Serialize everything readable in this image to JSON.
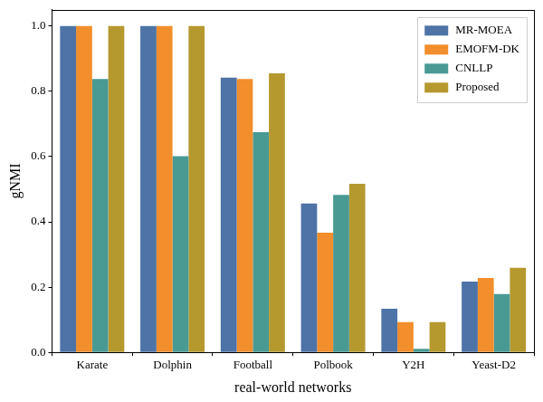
{
  "chart_data": {
    "type": "bar",
    "x_label": "real-world networks",
    "y_label": "gNMI",
    "categories": [
      "Karate",
      "Dolphin",
      "Football",
      "Polbook",
      "Y2H",
      "Yeast-D2"
    ],
    "series": [
      {
        "name": "MR-MOEA",
        "color": "#4e73a6",
        "values": [
          1.0,
          1.0,
          0.842,
          0.456,
          0.134,
          0.217
        ]
      },
      {
        "name": "EMOFM-DK",
        "color": "#f28e2b",
        "values": [
          1.0,
          1.0,
          0.838,
          0.367,
          0.093,
          0.228
        ]
      },
      {
        "name": "CNLLP",
        "color": "#4a9a94",
        "values": [
          0.838,
          0.601,
          0.675,
          0.483,
          0.011,
          0.179
        ]
      },
      {
        "name": "Proposed",
        "color": "#b5992f",
        "values": [
          1.0,
          1.0,
          0.855,
          0.517,
          0.093,
          0.259
        ]
      }
    ],
    "ylim": [
      0,
      1.05
    ],
    "yticks": [
      {
        "value": 0,
        "label": "0.0"
      },
      0.2,
      0.4,
      0.6,
      0.8,
      {
        "value": 1,
        "label": "1.0"
      }
    ],
    "grid": false,
    "legend": "upper right"
  }
}
